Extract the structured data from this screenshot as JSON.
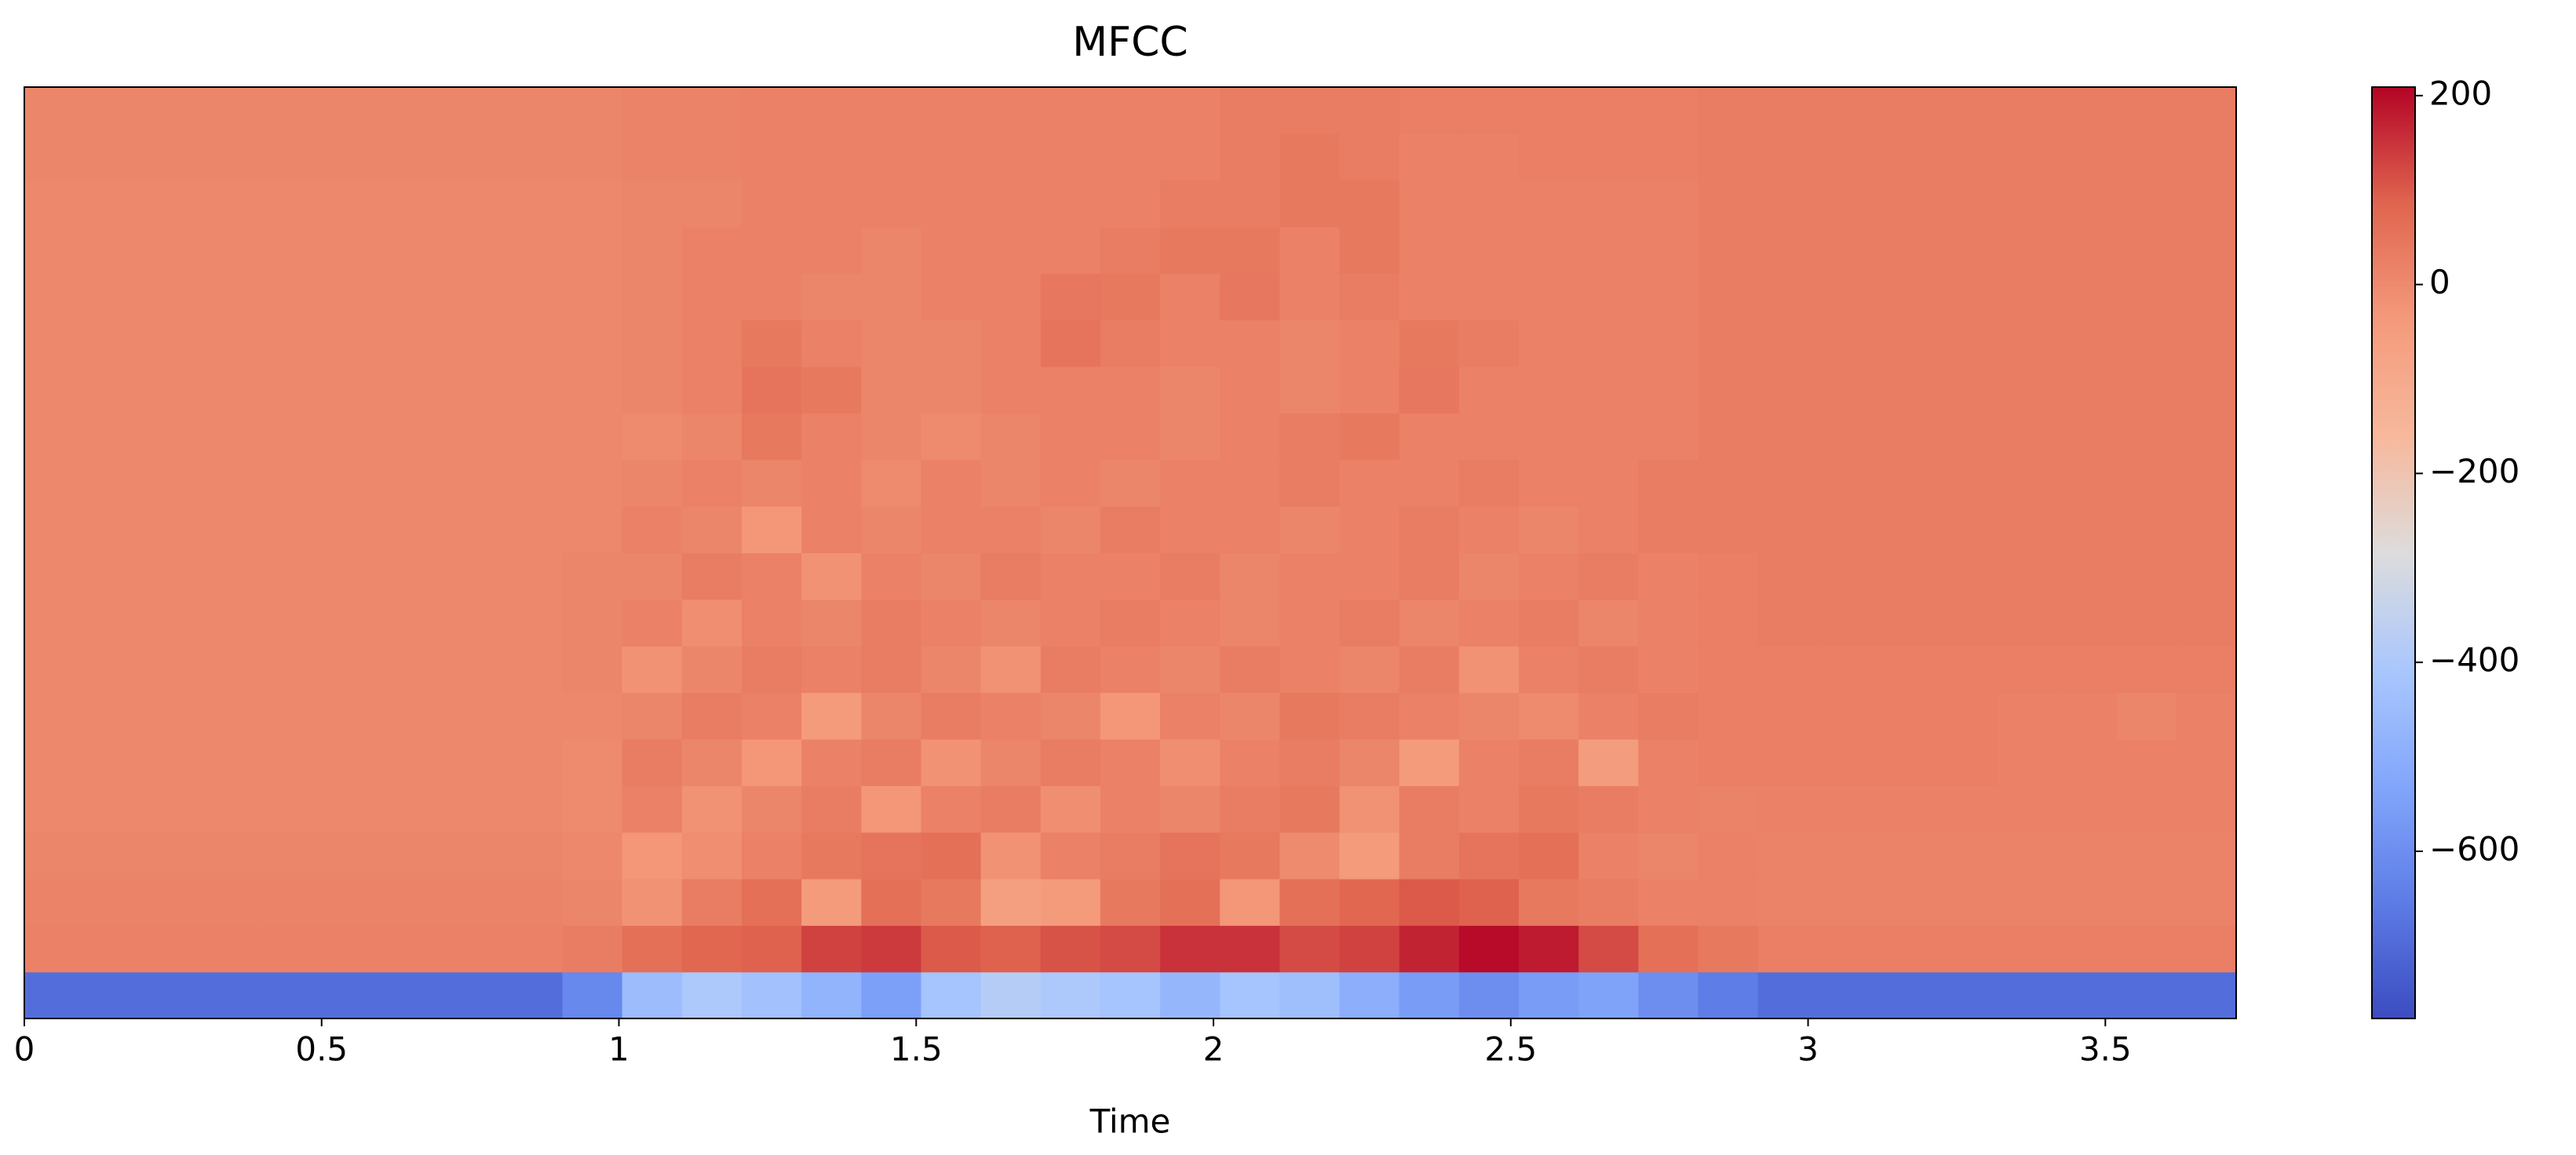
{
  "chart_data": {
    "type": "heatmap",
    "title": "MFCC",
    "xlabel": "Time",
    "colormap": "coolwarm",
    "xlim": [
      0,
      3.72
    ],
    "xticks": [
      0,
      0.5,
      1,
      1.5,
      2,
      2.5,
      3,
      3.5
    ],
    "clim": [
      -777,
      209
    ],
    "cticks": [
      200,
      0,
      {
        "value": -200,
        "label": "−200"
      },
      {
        "value": -400,
        "label": "−400"
      },
      {
        "value": -600,
        "label": "−600"
      }
    ],
    "z": [
      [
        -690,
        -690,
        -690,
        -690,
        -690,
        -690,
        -690,
        -690,
        -690,
        -620,
        -450,
        -400,
        -430,
        -480,
        -550,
        -420,
        -380,
        -400,
        -420,
        -470,
        -420,
        -440,
        -500,
        -560,
        -600,
        -560,
        -540,
        -600,
        -650,
        -690,
        -690,
        -690,
        -690,
        -690,
        -690,
        -690,
        -690
      ],
      [
        20,
        20,
        20,
        20,
        20,
        20,
        20,
        20,
        20,
        30,
        60,
        80,
        90,
        130,
        140,
        100,
        90,
        110,
        120,
        150,
        150,
        120,
        130,
        170,
        200,
        180,
        120,
        60,
        40,
        25,
        25,
        25,
        25,
        25,
        25,
        25,
        25
      ],
      [
        15,
        15,
        15,
        15,
        15,
        15,
        15,
        15,
        15,
        10,
        -20,
        30,
        60,
        -40,
        60,
        40,
        -60,
        -40,
        40,
        60,
        -30,
        60,
        80,
        100,
        90,
        40,
        30,
        20,
        20,
        15,
        15,
        15,
        15,
        15,
        15,
        15,
        15
      ],
      [
        10,
        10,
        10,
        10,
        10,
        10,
        10,
        10,
        10,
        5,
        -30,
        -10,
        20,
        40,
        50,
        60,
        -20,
        20,
        30,
        50,
        40,
        0,
        -40,
        30,
        50,
        60,
        20,
        10,
        20,
        15,
        15,
        15,
        15,
        15,
        15,
        15,
        15
      ],
      [
        5,
        5,
        5,
        5,
        5,
        5,
        5,
        5,
        5,
        0,
        20,
        -20,
        10,
        30,
        -30,
        20,
        30,
        -10,
        20,
        10,
        30,
        40,
        -20,
        30,
        20,
        40,
        30,
        20,
        15,
        20,
        20,
        20,
        20,
        20,
        20,
        20,
        20
      ],
      [
        5,
        5,
        5,
        5,
        5,
        5,
        5,
        5,
        5,
        0,
        30,
        10,
        -30,
        20,
        30,
        -20,
        10,
        30,
        20,
        -10,
        20,
        30,
        10,
        -40,
        20,
        30,
        -50,
        20,
        25,
        25,
        25,
        25,
        25,
        20,
        20,
        20,
        20
      ],
      [
        5,
        5,
        5,
        5,
        5,
        5,
        5,
        5,
        5,
        5,
        10,
        30,
        20,
        -40,
        10,
        30,
        20,
        10,
        -30,
        20,
        10,
        40,
        30,
        20,
        10,
        0,
        20,
        30,
        25,
        25,
        25,
        25,
        25,
        20,
        20,
        10,
        20
      ],
      [
        5,
        5,
        5,
        5,
        5,
        5,
        5,
        5,
        5,
        10,
        -20,
        10,
        30,
        20,
        30,
        10,
        -20,
        30,
        20,
        10,
        30,
        20,
        10,
        30,
        -20,
        20,
        30,
        20,
        25,
        25,
        25,
        25,
        25,
        25,
        25,
        25,
        25
      ],
      [
        5,
        5,
        5,
        5,
        5,
        5,
        5,
        5,
        5,
        10,
        20,
        -10,
        20,
        10,
        30,
        20,
        10,
        20,
        30,
        20,
        10,
        20,
        30,
        10,
        20,
        30,
        10,
        20,
        25,
        30,
        30,
        30,
        30,
        30,
        30,
        30,
        30
      ],
      [
        5,
        5,
        5,
        5,
        5,
        5,
        5,
        5,
        5,
        10,
        10,
        30,
        20,
        -20,
        20,
        10,
        30,
        20,
        20,
        30,
        10,
        20,
        20,
        30,
        10,
        20,
        30,
        20,
        25,
        30,
        30,
        30,
        30,
        30,
        30,
        30,
        30
      ],
      [
        5,
        5,
        5,
        5,
        5,
        5,
        5,
        5,
        5,
        5,
        20,
        10,
        -30,
        20,
        10,
        20,
        20,
        10,
        30,
        20,
        20,
        10,
        20,
        30,
        20,
        10,
        20,
        30,
        30,
        30,
        30,
        30,
        30,
        30,
        30,
        30,
        30
      ],
      [
        5,
        5,
        5,
        5,
        5,
        5,
        5,
        5,
        5,
        5,
        10,
        20,
        10,
        20,
        0,
        20,
        10,
        20,
        10,
        20,
        20,
        30,
        20,
        20,
        30,
        20,
        20,
        30,
        30,
        30,
        30,
        30,
        30,
        30,
        30,
        30,
        30
      ],
      [
        5,
        5,
        5,
        5,
        5,
        5,
        5,
        5,
        5,
        5,
        0,
        10,
        40,
        20,
        10,
        0,
        10,
        20,
        20,
        10,
        20,
        30,
        40,
        20,
        20,
        20,
        20,
        20,
        30,
        30,
        30,
        30,
        30,
        30,
        30,
        30,
        30
      ],
      [
        5,
        5,
        5,
        5,
        5,
        5,
        5,
        5,
        5,
        5,
        10,
        20,
        50,
        40,
        10,
        10,
        20,
        20,
        20,
        10,
        20,
        10,
        20,
        45,
        20,
        20,
        20,
        20,
        30,
        30,
        30,
        30,
        30,
        30,
        30,
        30,
        30
      ],
      [
        5,
        5,
        5,
        5,
        5,
        5,
        5,
        5,
        5,
        5,
        10,
        20,
        40,
        20,
        10,
        10,
        20,
        50,
        30,
        20,
        20,
        10,
        20,
        40,
        30,
        20,
        20,
        20,
        30,
        30,
        30,
        30,
        30,
        30,
        30,
        30,
        30
      ],
      [
        5,
        5,
        5,
        5,
        5,
        5,
        5,
        5,
        5,
        5,
        10,
        20,
        20,
        10,
        10,
        20,
        20,
        45,
        40,
        20,
        45,
        20,
        30,
        20,
        20,
        20,
        20,
        20,
        30,
        30,
        30,
        30,
        30,
        30,
        30,
        30,
        30
      ],
      [
        5,
        5,
        5,
        5,
        5,
        5,
        5,
        5,
        5,
        5,
        10,
        20,
        20,
        20,
        10,
        20,
        20,
        20,
        30,
        40,
        40,
        20,
        40,
        20,
        20,
        20,
        20,
        20,
        30,
        30,
        30,
        30,
        30,
        30,
        30,
        30,
        30
      ],
      [
        5,
        5,
        5,
        5,
        5,
        5,
        5,
        5,
        5,
        5,
        10,
        10,
        20,
        20,
        20,
        20,
        20,
        20,
        20,
        30,
        30,
        40,
        40,
        20,
        20,
        20,
        20,
        20,
        30,
        30,
        30,
        30,
        30,
        30,
        30,
        30,
        30
      ],
      [
        10,
        10,
        10,
        10,
        10,
        10,
        10,
        10,
        10,
        10,
        15,
        15,
        20,
        20,
        20,
        20,
        20,
        20,
        20,
        20,
        30,
        40,
        30,
        20,
        20,
        25,
        25,
        25,
        30,
        30,
        30,
        30,
        30,
        30,
        30,
        30,
        30
      ],
      [
        10,
        10,
        10,
        10,
        10,
        10,
        10,
        10,
        10,
        10,
        15,
        15,
        20,
        20,
        20,
        20,
        20,
        20,
        20,
        20,
        30,
        30,
        30,
        25,
        25,
        25,
        25,
        25,
        30,
        30,
        30,
        30,
        30,
        30,
        30,
        30,
        30
      ]
    ]
  }
}
